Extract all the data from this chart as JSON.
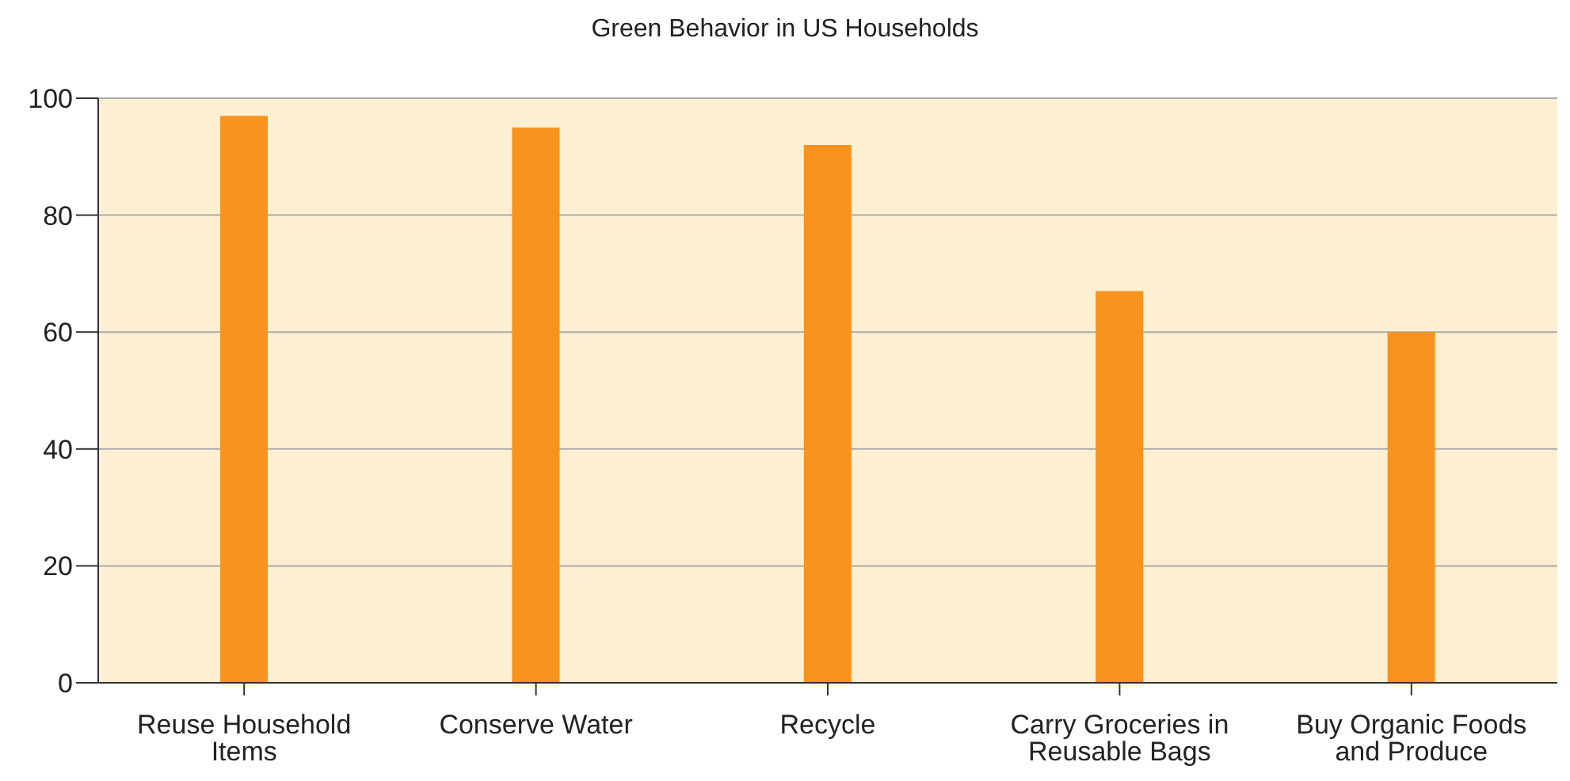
{
  "chart_data": {
    "type": "bar",
    "title": "Green Behavior in US Households",
    "categories": [
      "Reuse Household Items",
      "Conserve Water",
      "Recycle",
      "Carry Groceries in Reusable Bags",
      "Buy Organic Foods and Produce"
    ],
    "values": [
      97,
      95,
      92,
      67,
      60
    ],
    "color": "#f7931e",
    "ylim": [
      0,
      100
    ],
    "yticks": [
      0,
      20,
      40,
      60,
      80,
      100
    ],
    "grid": "y"
  }
}
